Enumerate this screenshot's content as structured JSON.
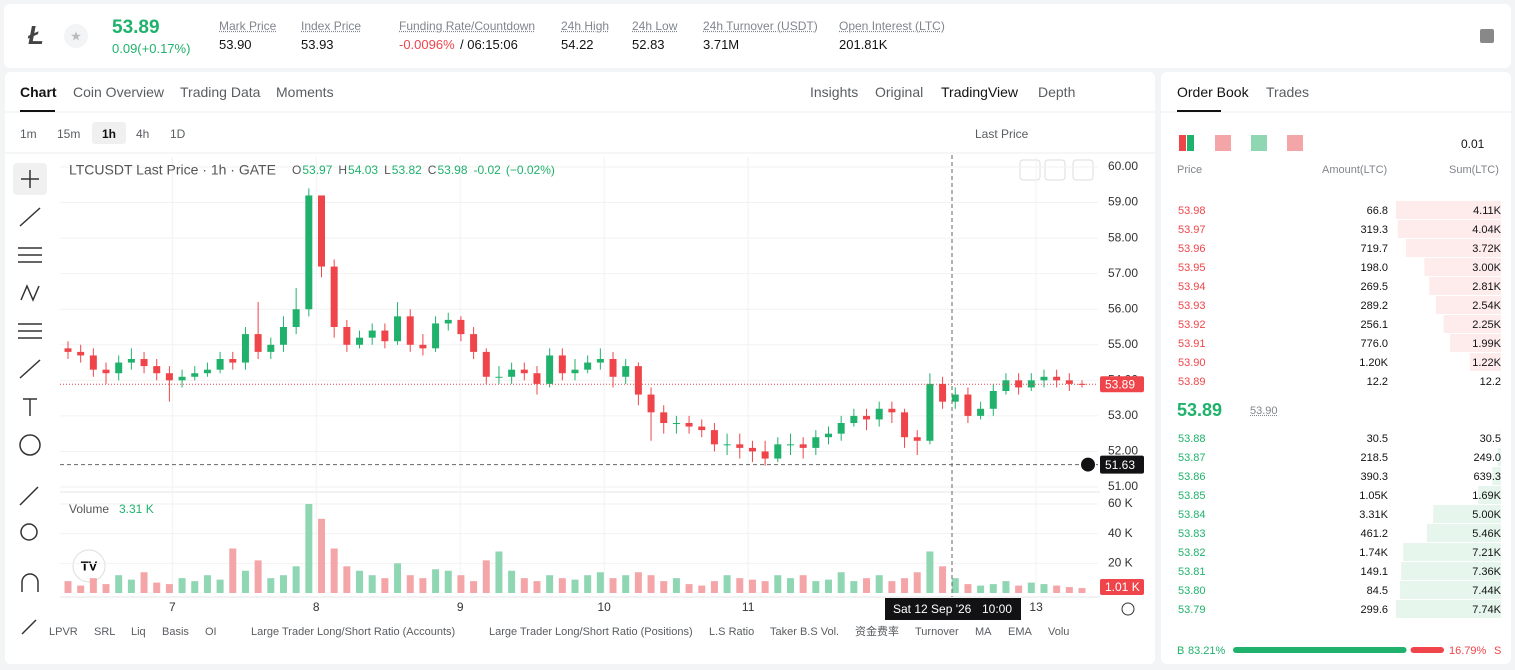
{
  "header": {
    "price": "53.89",
    "change": "0.09(+0.17%)",
    "stats": [
      {
        "label": "Mark Price",
        "value": "53.90"
      },
      {
        "label": "Index Price",
        "value": "53.93"
      },
      {
        "label": "Funding Rate/Countdown",
        "value": "-0.0096%",
        "countdown": "/ 06:15:06"
      },
      {
        "label": "24h High",
        "value": "54.22"
      },
      {
        "label": "24h Low",
        "value": "52.83"
      },
      {
        "label": "24h Turnover (USDT)",
        "value": "3.71M"
      },
      {
        "label": "Open Interest (LTC)",
        "value": "201.81K"
      }
    ]
  },
  "tabs": [
    "Chart",
    "Coin Overview",
    "Trading Data",
    "Moments"
  ],
  "views": [
    "Insights",
    "Original",
    "TradingView",
    "Depth"
  ],
  "intervals": [
    "1m",
    "15m",
    "1h",
    "4h",
    "1D"
  ],
  "price_source": "Last Price",
  "indicators": [
    "LPVR",
    "SRL",
    "Liq",
    "Basis",
    "OI",
    "Large Trader Long/Short Ratio (Accounts)",
    "Large Trader Long/Short Ratio (Positions)",
    "L.S Ratio",
    "Taker B.S Vol.",
    "资金费率",
    "Turnover",
    "MA",
    "EMA",
    "Volu"
  ],
  "chart_data": {
    "type": "candlestick",
    "title": "LTCUSDT Last Price · 1h · GATE",
    "ohlc": {
      "labels": [
        "O",
        "H",
        "L",
        "C"
      ],
      "values": [
        53.97,
        54.03,
        53.82,
        53.98
      ],
      "change": -0.02,
      "change_pct": "(−0.02%)"
    },
    "candles": {
      "open": [
        54.9,
        54.8,
        54.7,
        54.3,
        54.2,
        54.5,
        54.6,
        54.4,
        54.2,
        54.0,
        54.1,
        54.2,
        54.3,
        54.6,
        54.5,
        55.3,
        54.8,
        55.0,
        55.5,
        56.0,
        59.2,
        57.2,
        55.5,
        55.0,
        55.2,
        55.4,
        55.1,
        55.8,
        55.0,
        54.9,
        55.6,
        55.7,
        55.3,
        54.8,
        54.1,
        54.1,
        54.3,
        54.2,
        53.9,
        54.7,
        54.2,
        54.3,
        54.5,
        54.6,
        54.1,
        54.4,
        53.6,
        53.1,
        52.8,
        52.8,
        52.7,
        52.6,
        52.2,
        52.2,
        52.1,
        52.0,
        51.8,
        52.2,
        52.2,
        52.1,
        52.4,
        52.5,
        52.8,
        53.0,
        52.9,
        53.2,
        53.1,
        52.4,
        52.3,
        53.9,
        53.4,
        53.6,
        53.0,
        53.2,
        53.7,
        54.0,
        53.8,
        54.0,
        54.1,
        54.0,
        53.9
      ],
      "high": [
        55.1,
        55.0,
        54.9,
        54.5,
        54.7,
        54.9,
        54.8,
        54.6,
        54.4,
        54.3,
        54.4,
        54.5,
        54.8,
        54.8,
        55.5,
        56.2,
        55.2,
        55.8,
        56.6,
        59.4,
        59.2,
        57.4,
        55.7,
        55.4,
        55.6,
        55.6,
        56.2,
        56.0,
        55.3,
        55.8,
        55.9,
        55.8,
        55.5,
        54.9,
        54.4,
        54.5,
        54.5,
        54.4,
        54.9,
        54.9,
        54.6,
        54.7,
        54.9,
        54.8,
        54.6,
        54.5,
        53.8,
        53.3,
        53.0,
        53.0,
        52.9,
        52.8,
        52.5,
        52.5,
        52.3,
        52.3,
        52.4,
        52.5,
        52.4,
        52.6,
        52.7,
        53.0,
        53.2,
        53.2,
        53.4,
        53.4,
        53.2,
        52.6,
        54.2,
        54.1,
        53.8,
        53.8,
        53.4,
        53.9,
        54.2,
        54.2,
        54.2,
        54.3,
        54.3,
        54.2,
        54.0
      ],
      "low": [
        54.6,
        54.5,
        54.1,
        53.9,
        54.0,
        54.3,
        54.2,
        54.0,
        53.4,
        53.8,
        54.0,
        54.1,
        54.2,
        54.3,
        54.3,
        54.6,
        54.6,
        54.8,
        55.3,
        55.8,
        56.9,
        55.2,
        54.8,
        54.9,
        55.0,
        54.9,
        55.0,
        54.8,
        54.7,
        54.8,
        55.4,
        55.1,
        54.6,
        53.9,
        53.9,
        53.9,
        54.0,
        53.6,
        53.8,
        54.0,
        54.0,
        54.2,
        54.3,
        53.8,
        53.9,
        53.3,
        52.3,
        52.5,
        52.5,
        52.5,
        52.4,
        52.0,
        51.9,
        51.8,
        51.7,
        51.6,
        51.7,
        51.9,
        51.8,
        51.9,
        52.2,
        52.3,
        52.7,
        52.6,
        52.7,
        52.8,
        52.1,
        51.9,
        52.2,
        53.2,
        53.2,
        52.8,
        52.9,
        53.0,
        53.6,
        53.6,
        53.7,
        53.8,
        53.8,
        53.7,
        53.8
      ],
      "close": [
        54.8,
        54.7,
        54.3,
        54.2,
        54.5,
        54.6,
        54.4,
        54.2,
        54.0,
        54.1,
        54.2,
        54.3,
        54.6,
        54.5,
        55.3,
        54.8,
        55.0,
        55.5,
        56.0,
        59.2,
        57.2,
        55.5,
        55.0,
        55.2,
        55.4,
        55.1,
        55.8,
        55.0,
        54.9,
        55.6,
        55.7,
        55.3,
        54.8,
        54.1,
        54.1,
        54.3,
        54.2,
        53.9,
        54.7,
        54.2,
        54.3,
        54.5,
        54.6,
        54.1,
        54.4,
        53.6,
        53.1,
        52.8,
        52.8,
        52.7,
        52.6,
        52.2,
        52.2,
        52.1,
        52.0,
        51.8,
        52.2,
        52.2,
        52.1,
        52.4,
        52.5,
        52.8,
        53.0,
        52.9,
        53.2,
        53.1,
        52.4,
        52.3,
        53.9,
        53.4,
        53.6,
        53.0,
        53.2,
        53.7,
        54.0,
        53.8,
        54.0,
        54.1,
        54.0,
        53.9,
        53.89
      ]
    },
    "ylim": [
      51,
      60
    ],
    "yticks": [
      {
        "value": 60,
        "label": "60.00"
      },
      {
        "value": 59,
        "label": "59.00"
      },
      {
        "value": 58,
        "label": "58.00"
      },
      {
        "value": 57,
        "label": "57.00"
      },
      {
        "value": 56,
        "label": "56.00"
      },
      {
        "value": 55,
        "label": "55.00"
      },
      {
        "value": 54,
        "label": "54.00"
      },
      {
        "value": 53,
        "label": "53.00"
      },
      {
        "value": 52,
        "label": "52.00"
      },
      {
        "value": 51,
        "label": "51.00"
      }
    ],
    "xlim": [
      6.22,
      13.43
    ],
    "xticks": [
      7,
      8,
      9,
      10,
      11,
      13
    ],
    "last_price": {
      "value": 53.89,
      "label": "53.89"
    },
    "crosshair": {
      "value": 51.63,
      "label": "51.63",
      "date": "Sat 12 Sep '26",
      "time": "10:00"
    },
    "volume": {
      "title": "Volume",
      "current": "3.31 K",
      "last_label": "1.01 K",
      "values": [
        8,
        5,
        10,
        6,
        12,
        9,
        14,
        7,
        6,
        10,
        8,
        12,
        9,
        30,
        15,
        22,
        10,
        12,
        18,
        60,
        50,
        30,
        18,
        15,
        12,
        10,
        20,
        12,
        10,
        16,
        15,
        12,
        8,
        22,
        28,
        15,
        10,
        8,
        12,
        10,
        9,
        12,
        14,
        10,
        12,
        14,
        12,
        8,
        10,
        6,
        5,
        8,
        12,
        10,
        9,
        8,
        12,
        10,
        12,
        8,
        9,
        14,
        8,
        10,
        12,
        8,
        10,
        14,
        28,
        18,
        10,
        6,
        5,
        6,
        8,
        5,
        7,
        6,
        5,
        4,
        3.31
      ],
      "ylim": [
        0,
        60
      ],
      "yticks": [
        {
          "value": 20,
          "label": "20 K"
        },
        {
          "value": 40,
          "label": "40 K"
        },
        {
          "value": 60,
          "label": "60 K"
        }
      ]
    },
    "up_color": "#20b26c",
    "down_color": "#ef454a",
    "up_volume_color": "#8fd6b3",
    "down_volume_color": "#f4a5a8"
  },
  "order_book": {
    "tabs": [
      "Order Book",
      "Trades"
    ],
    "tick": "0.01",
    "columns": [
      "Price",
      "Amount(LTC)",
      "Sum(LTC)"
    ],
    "asks": [
      {
        "price": "53.98",
        "amount": "66.8",
        "sum": {
          "value": 4110,
          "label": "4.11K"
        }
      },
      {
        "price": "53.97",
        "amount": "319.3",
        "sum": {
          "value": 4040,
          "label": "4.04K"
        }
      },
      {
        "price": "53.96",
        "amount": "719.7",
        "sum": {
          "value": 3720,
          "label": "3.72K"
        }
      },
      {
        "price": "53.95",
        "amount": "198.0",
        "sum": {
          "value": 3000,
          "label": "3.00K"
        }
      },
      {
        "price": "53.94",
        "amount": "269.5",
        "sum": {
          "value": 2810,
          "label": "2.81K"
        }
      },
      {
        "price": "53.93",
        "amount": "289.2",
        "sum": {
          "value": 2540,
          "label": "2.54K"
        }
      },
      {
        "price": "53.92",
        "amount": "256.1",
        "sum": {
          "value": 2250,
          "label": "2.25K"
        }
      },
      {
        "price": "53.91",
        "amount": "776.0",
        "sum": {
          "value": 1990,
          "label": "1.99K"
        }
      },
      {
        "price": "53.90",
        "amount": "1.20K",
        "sum": {
          "value": 1220,
          "label": "1.22K"
        }
      },
      {
        "price": "53.89",
        "amount": "12.2",
        "sum": {
          "value": 12.2,
          "label": "12.2"
        }
      }
    ],
    "mid": {
      "price": "53.89",
      "mark": "53.90"
    },
    "bids": [
      {
        "price": "53.88",
        "amount": "30.5",
        "sum": {
          "value": 30.5,
          "label": "30.5"
        }
      },
      {
        "price": "53.87",
        "amount": "218.5",
        "sum": {
          "value": 249,
          "label": "249.0"
        }
      },
      {
        "price": "53.86",
        "amount": "390.3",
        "sum": {
          "value": 639.3,
          "label": "639.3"
        }
      },
      {
        "price": "53.85",
        "amount": "1.05K",
        "sum": {
          "value": 1690,
          "label": "1.69K"
        }
      },
      {
        "price": "53.84",
        "amount": "3.31K",
        "sum": {
          "value": 5000,
          "label": "5.00K"
        }
      },
      {
        "price": "53.83",
        "amount": "461.2",
        "sum": {
          "value": 5460,
          "label": "5.46K"
        }
      },
      {
        "price": "53.82",
        "amount": "1.74K",
        "sum": {
          "value": 7210,
          "label": "7.21K"
        }
      },
      {
        "price": "53.81",
        "amount": "149.1",
        "sum": {
          "value": 7360,
          "label": "7.36K"
        }
      },
      {
        "price": "53.80",
        "amount": "84.5",
        "sum": {
          "value": 7440,
          "label": "7.44K"
        }
      },
      {
        "price": "53.79",
        "amount": "299.6",
        "sum": {
          "value": 7740,
          "label": "7.74K"
        }
      }
    ],
    "ratio": {
      "buy_label": "B",
      "buy": {
        "value": 83.21,
        "label": "83.21%"
      },
      "sell_label": "S",
      "sell": {
        "value": 16.79,
        "label": "16.79%"
      }
    }
  }
}
